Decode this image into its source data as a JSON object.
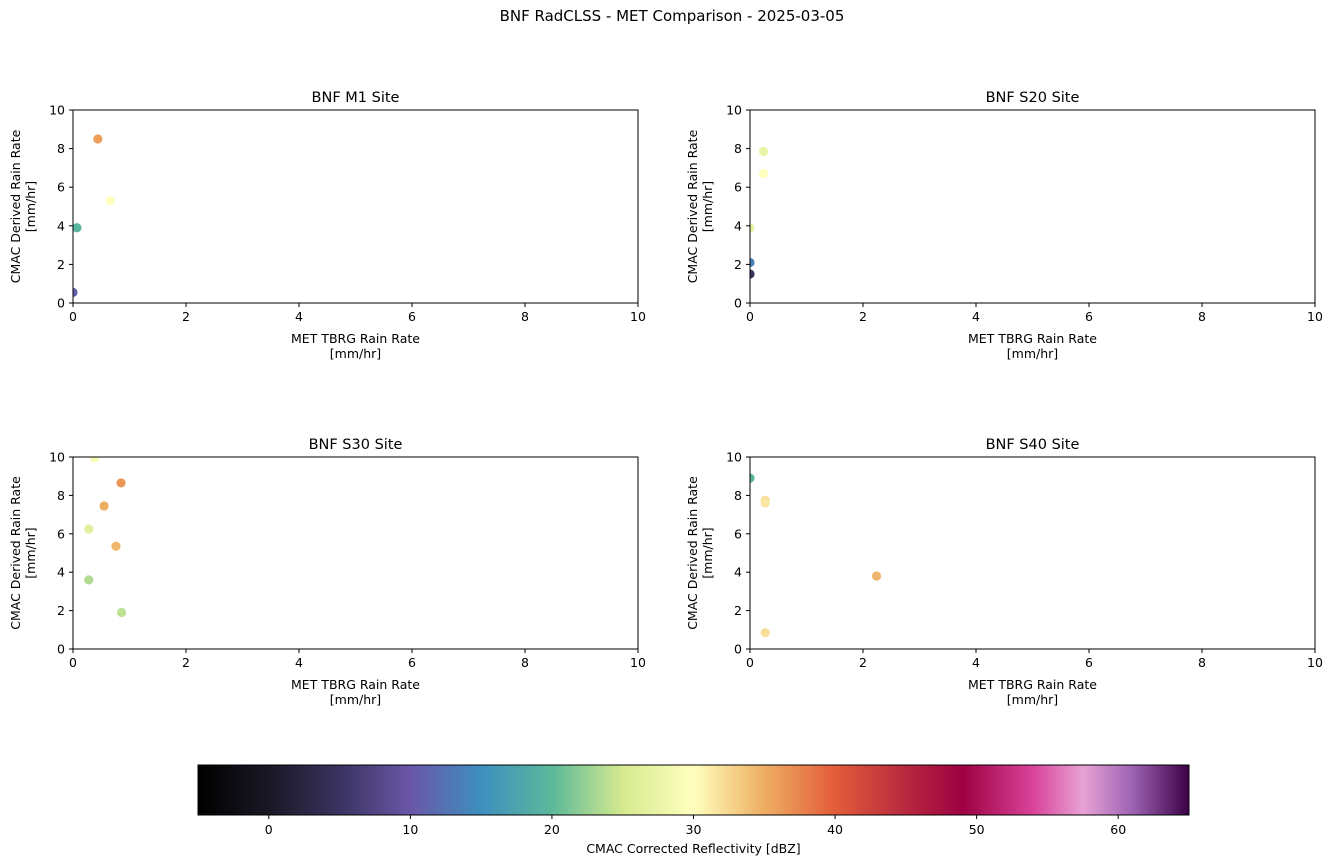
{
  "figure": {
    "suptitle": "BNF RadCLSS - MET Comparison - 2025-03-05"
  },
  "chart_data": [
    {
      "type": "scatter",
      "title": "BNF M1 Site",
      "xlabel": [
        "MET TBRG Rain Rate",
        "[mm/hr]"
      ],
      "ylabel": [
        "CMAC Derived Rain Rate",
        "[mm/hr]"
      ],
      "xlim": [
        0,
        10
      ],
      "ylim": [
        0,
        10
      ],
      "xticks": [
        0,
        2,
        4,
        6,
        8,
        10
      ],
      "yticks": [
        0,
        2,
        4,
        6,
        8,
        10
      ],
      "points": [
        {
          "x": 0.0,
          "y": 0.55,
          "dbz": 11
        },
        {
          "x": 0.07,
          "y": 3.9,
          "dbz": 19.5
        },
        {
          "x": 0.44,
          "y": 8.5,
          "dbz": 36
        },
        {
          "x": 0.66,
          "y": 5.3,
          "dbz": 30
        }
      ]
    },
    {
      "type": "scatter",
      "title": "BNF S20 Site",
      "xlabel": [
        "MET TBRG Rain Rate",
        "[mm/hr]"
      ],
      "ylabel": [
        "CMAC Derived Rain Rate",
        "[mm/hr]"
      ],
      "xlim": [
        0,
        10
      ],
      "ylim": [
        0,
        10
      ],
      "xticks": [
        0,
        2,
        4,
        6,
        8,
        10
      ],
      "yticks": [
        0,
        2,
        4,
        6,
        8,
        10
      ],
      "points": [
        {
          "x": 0.0,
          "y": 1.5,
          "dbz": 5
        },
        {
          "x": 0.0,
          "y": 2.1,
          "dbz": 14
        },
        {
          "x": 0.0,
          "y": 3.9,
          "dbz": 27
        },
        {
          "x": 0.24,
          "y": 7.85,
          "dbz": 27.5
        },
        {
          "x": 0.24,
          "y": 6.7,
          "dbz": 30
        }
      ]
    },
    {
      "type": "scatter",
      "title": "BNF S30 Site",
      "xlabel": [
        "MET TBRG Rain Rate",
        "[mm/hr]"
      ],
      "ylabel": [
        "CMAC Derived Rain Rate",
        "[mm/hr]"
      ],
      "xlim": [
        0,
        10
      ],
      "ylim": [
        0,
        10
      ],
      "xticks": [
        0,
        2,
        4,
        6,
        8,
        10
      ],
      "yticks": [
        0,
        2,
        4,
        6,
        8,
        10
      ],
      "points": [
        {
          "x": 0.38,
          "y": 9.95,
          "dbz": 29
        },
        {
          "x": 0.85,
          "y": 8.65,
          "dbz": 36.5
        },
        {
          "x": 0.55,
          "y": 7.45,
          "dbz": 35
        },
        {
          "x": 0.28,
          "y": 6.25,
          "dbz": 26.5
        },
        {
          "x": 0.76,
          "y": 5.35,
          "dbz": 34.5
        },
        {
          "x": 0.28,
          "y": 3.6,
          "dbz": 23.5
        },
        {
          "x": 0.86,
          "y": 1.9,
          "dbz": 24
        }
      ]
    },
    {
      "type": "scatter",
      "title": "BNF S40 Site",
      "xlabel": [
        "MET TBRG Rain Rate",
        "[mm/hr]"
      ],
      "ylabel": [
        "CMAC Derived Rain Rate",
        "[mm/hr]"
      ],
      "xlim": [
        0,
        10
      ],
      "ylim": [
        0,
        10
      ],
      "xticks": [
        0,
        2,
        4,
        6,
        8,
        10
      ],
      "yticks": [
        0,
        2,
        4,
        6,
        8,
        10
      ],
      "points": [
        {
          "x": 0.0,
          "y": 8.9,
          "dbz": 20
        },
        {
          "x": 0.27,
          "y": 7.75,
          "dbz": 32
        },
        {
          "x": 0.27,
          "y": 7.6,
          "dbz": 31.5
        },
        {
          "x": 2.24,
          "y": 3.8,
          "dbz": 34.5
        },
        {
          "x": 0.27,
          "y": 0.85,
          "dbz": 32
        }
      ]
    }
  ],
  "colorbar": {
    "label": "CMAC Corrected Reflectivity [dBZ]",
    "vmin": -5,
    "vmax": 65,
    "ticks": [
      0,
      10,
      20,
      30,
      40,
      50,
      60
    ],
    "colormap": [
      {
        "v": -5,
        "c": "#000000"
      },
      {
        "v": 0,
        "c": "#1a1724"
      },
      {
        "v": 5,
        "c": "#3a3360"
      },
      {
        "v": 10,
        "c": "#6a56a8"
      },
      {
        "v": 15,
        "c": "#3d8fc0"
      },
      {
        "v": 20,
        "c": "#5bb99a"
      },
      {
        "v": 25,
        "c": "#d6ea8f"
      },
      {
        "v": 30,
        "c": "#ffffbe"
      },
      {
        "v": 35,
        "c": "#eeae62"
      },
      {
        "v": 40,
        "c": "#e35c3a"
      },
      {
        "v": 45,
        "c": "#b8283f"
      },
      {
        "v": 49,
        "c": "#9e0142"
      },
      {
        "v": 54,
        "c": "#d9439a"
      },
      {
        "v": 57.5,
        "c": "#e8a2d4"
      },
      {
        "v": 61,
        "c": "#9d63b4"
      },
      {
        "v": 65,
        "c": "#3b0145"
      }
    ]
  }
}
